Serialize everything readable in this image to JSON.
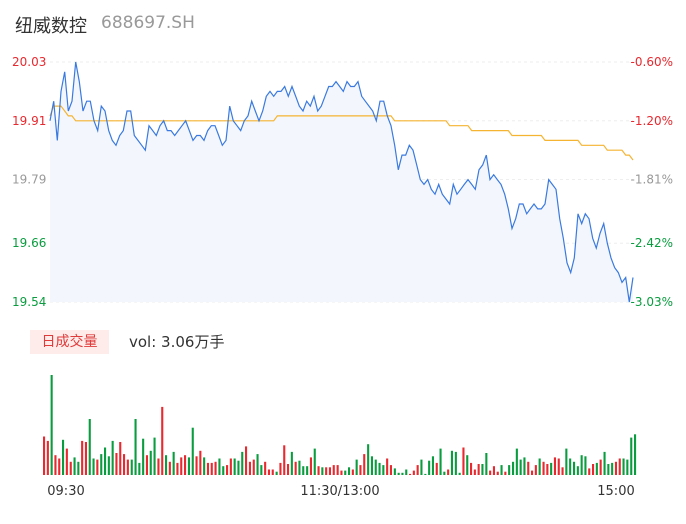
{
  "header": {
    "name": "纽威数控",
    "code": "688697.SH"
  },
  "volume_panel": {
    "tab_label": "日成交量",
    "summary": "vol: 3.06万手"
  },
  "colors": {
    "up": "#e8292f",
    "down": "#0a9d3f",
    "flat": "#999999",
    "price_line": "#3a7ae0",
    "avg_line": "#f5b431"
  },
  "chart_data": [
    {
      "type": "line",
      "y_ticks_left": [
        "20.03",
        "19.91",
        "19.79",
        "19.66",
        "19.54"
      ],
      "y_ticks_right": [
        "-0.60%",
        "-1.20%",
        "-1.81%",
        "-2.42%",
        "-3.03%"
      ],
      "ylim": [
        19.54,
        20.03
      ],
      "x_ticks": [
        "09:30",
        "11:30/13:00",
        "15:00"
      ],
      "series": [
        {
          "values": [
            19.91,
            19.95,
            19.87,
            19.97,
            20.01,
            19.93,
            19.95,
            20.03,
            19.99,
            19.93,
            19.95,
            19.95,
            19.91,
            19.89,
            19.94,
            19.93,
            19.89,
            19.87,
            19.86,
            19.88,
            19.89,
            19.93,
            19.93,
            19.88,
            19.87,
            19.86,
            19.85,
            19.9,
            19.89,
            19.88,
            19.9,
            19.91,
            19.89,
            19.89,
            19.88,
            19.89,
            19.9,
            19.91,
            19.89,
            19.87,
            19.88,
            19.88,
            19.87,
            19.89,
            19.9,
            19.9,
            19.88,
            19.86,
            19.87,
            19.94,
            19.91,
            19.9,
            19.89,
            19.91,
            19.92,
            19.95,
            19.93,
            19.91,
            19.93,
            19.96,
            19.97,
            19.96,
            19.97,
            19.97,
            19.98,
            19.96,
            19.98,
            19.96,
            19.94,
            19.93,
            19.95,
            19.94,
            19.96,
            19.93,
            19.94,
            19.96,
            19.98,
            19.98,
            19.99,
            19.98,
            19.97,
            19.99,
            19.98,
            19.98,
            19.99,
            19.96,
            19.95,
            19.94,
            19.93,
            19.91,
            19.95,
            19.95,
            19.92,
            19.9,
            19.86,
            19.81,
            19.84,
            19.84,
            19.86,
            19.85,
            19.82,
            19.79,
            19.78,
            19.79,
            19.77,
            19.76,
            19.78,
            19.76,
            19.75,
            19.74,
            19.78,
            19.76,
            19.77,
            19.78,
            19.79,
            19.78,
            19.77,
            19.81,
            19.82,
            19.84,
            19.79,
            19.8,
            19.79,
            19.78,
            19.76,
            19.73,
            19.69,
            19.71,
            19.74,
            19.74,
            19.72,
            19.73,
            19.74,
            19.73,
            19.73,
            19.74,
            19.79,
            19.78,
            19.77,
            19.71,
            19.67,
            19.62,
            19.6,
            19.63,
            19.72,
            19.7,
            19.72,
            19.71,
            19.67,
            19.65,
            19.68,
            19.7,
            19.66,
            19.63,
            19.61,
            19.6,
            19.58,
            19.59,
            19.54,
            19.59
          ]
        },
        {
          "values": [
            19.92,
            19.94,
            19.94,
            19.94,
            19.93,
            19.92,
            19.92,
            19.91,
            19.91,
            19.91,
            19.91,
            19.91,
            19.91,
            19.91,
            19.91,
            19.91,
            19.91,
            19.91,
            19.91,
            19.91,
            19.91,
            19.91,
            19.91,
            19.91,
            19.91,
            19.91,
            19.91,
            19.91,
            19.91,
            19.91,
            19.91,
            19.91,
            19.91,
            19.91,
            19.91,
            19.91,
            19.91,
            19.91,
            19.91,
            19.91,
            19.91,
            19.91,
            19.91,
            19.91,
            19.91,
            19.91,
            19.91,
            19.91,
            19.91,
            19.91,
            19.91,
            19.91,
            19.91,
            19.91,
            19.91,
            19.91,
            19.91,
            19.91,
            19.91,
            19.91,
            19.91,
            19.91,
            19.92,
            19.92,
            19.92,
            19.92,
            19.92,
            19.92,
            19.92,
            19.92,
            19.92,
            19.92,
            19.92,
            19.92,
            19.92,
            19.92,
            19.92,
            19.92,
            19.92,
            19.92,
            19.92,
            19.92,
            19.92,
            19.92,
            19.92,
            19.92,
            19.92,
            19.92,
            19.92,
            19.92,
            19.92,
            19.92,
            19.92,
            19.92,
            19.91,
            19.91,
            19.91,
            19.91,
            19.91,
            19.91,
            19.91,
            19.91,
            19.91,
            19.91,
            19.91,
            19.91,
            19.91,
            19.91,
            19.91,
            19.9,
            19.9,
            19.9,
            19.9,
            19.9,
            19.9,
            19.89,
            19.89,
            19.89,
            19.89,
            19.89,
            19.89,
            19.89,
            19.89,
            19.89,
            19.89,
            19.89,
            19.88,
            19.88,
            19.88,
            19.88,
            19.88,
            19.88,
            19.88,
            19.88,
            19.88,
            19.87,
            19.87,
            19.87,
            19.87,
            19.87,
            19.87,
            19.87,
            19.87,
            19.87,
            19.87,
            19.86,
            19.86,
            19.86,
            19.86,
            19.86,
            19.86,
            19.86,
            19.85,
            19.85,
            19.85,
            19.85,
            19.85,
            19.84,
            19.84,
            19.83
          ]
        }
      ]
    },
    {
      "type": "bar",
      "x_ticks": [
        "09:30",
        "11:30/13:00",
        "15:00"
      ],
      "values": [
        3.5,
        3.1,
        9.1,
        1.8,
        1.5,
        3.2,
        2.4,
        1.2,
        1.6,
        1.2,
        3.1,
        3,
        5.1,
        1.5,
        1.4,
        1.9,
        2.5,
        1.7,
        3.1,
        2,
        3,
        1.9,
        1.4,
        1.4,
        5.1,
        1.1,
        3.3,
        1.8,
        2.2,
        3.4,
        1.5,
        6.2,
        1.8,
        1.2,
        2.1,
        1.1,
        1.6,
        1.8,
        1.6,
        4.3,
        1.7,
        2.2,
        1.6,
        1.1,
        1.1,
        1.2,
        1.5,
        0.8,
        0.9,
        1.5,
        1.5,
        1.3,
        2.1,
        2.6,
        1.2,
        1.4,
        1.9,
        0.9,
        1.2,
        0.5,
        0.5,
        0.3,
        1.1,
        2.7,
        1,
        2.1,
        1.2,
        1.3,
        0.8,
        0.8,
        1.6,
        2.4,
        0.8,
        0.7,
        0.7,
        0.7,
        0.9,
        0.9,
        0.4,
        0.4,
        0.7,
        0.5,
        1.4,
        0.9,
        1.9,
        2.8,
        1.7,
        1.4,
        1.1,
        0.9,
        1.5,
        0.9,
        0.6,
        0.2,
        0.2,
        0.5,
        0.1,
        0.4,
        0.9,
        1.4,
        0.1,
        1.3,
        1.7,
        1.1,
        2.4,
        0.3,
        0.5,
        2.2,
        2.1,
        0.2,
        2.5,
        1.8,
        1.1,
        0.5,
        1,
        1,
        2,
        0.4,
        0.8,
        0.3,
        0.9,
        0.3,
        0.9,
        1.2,
        2.4,
        1.4,
        1.6,
        1.2,
        0.4,
        0.9,
        1.5,
        1.2,
        1,
        1.1,
        1.6,
        1.5,
        0.7,
        2.4,
        1.5,
        1.2,
        0.8,
        1.8,
        1.7,
        0.6,
        1,
        1.1,
        1.4,
        2.1,
        1,
        1.1,
        1.2,
        1.5,
        1.5,
        1.4,
        3.4,
        3.7
      ]
    }
  ]
}
